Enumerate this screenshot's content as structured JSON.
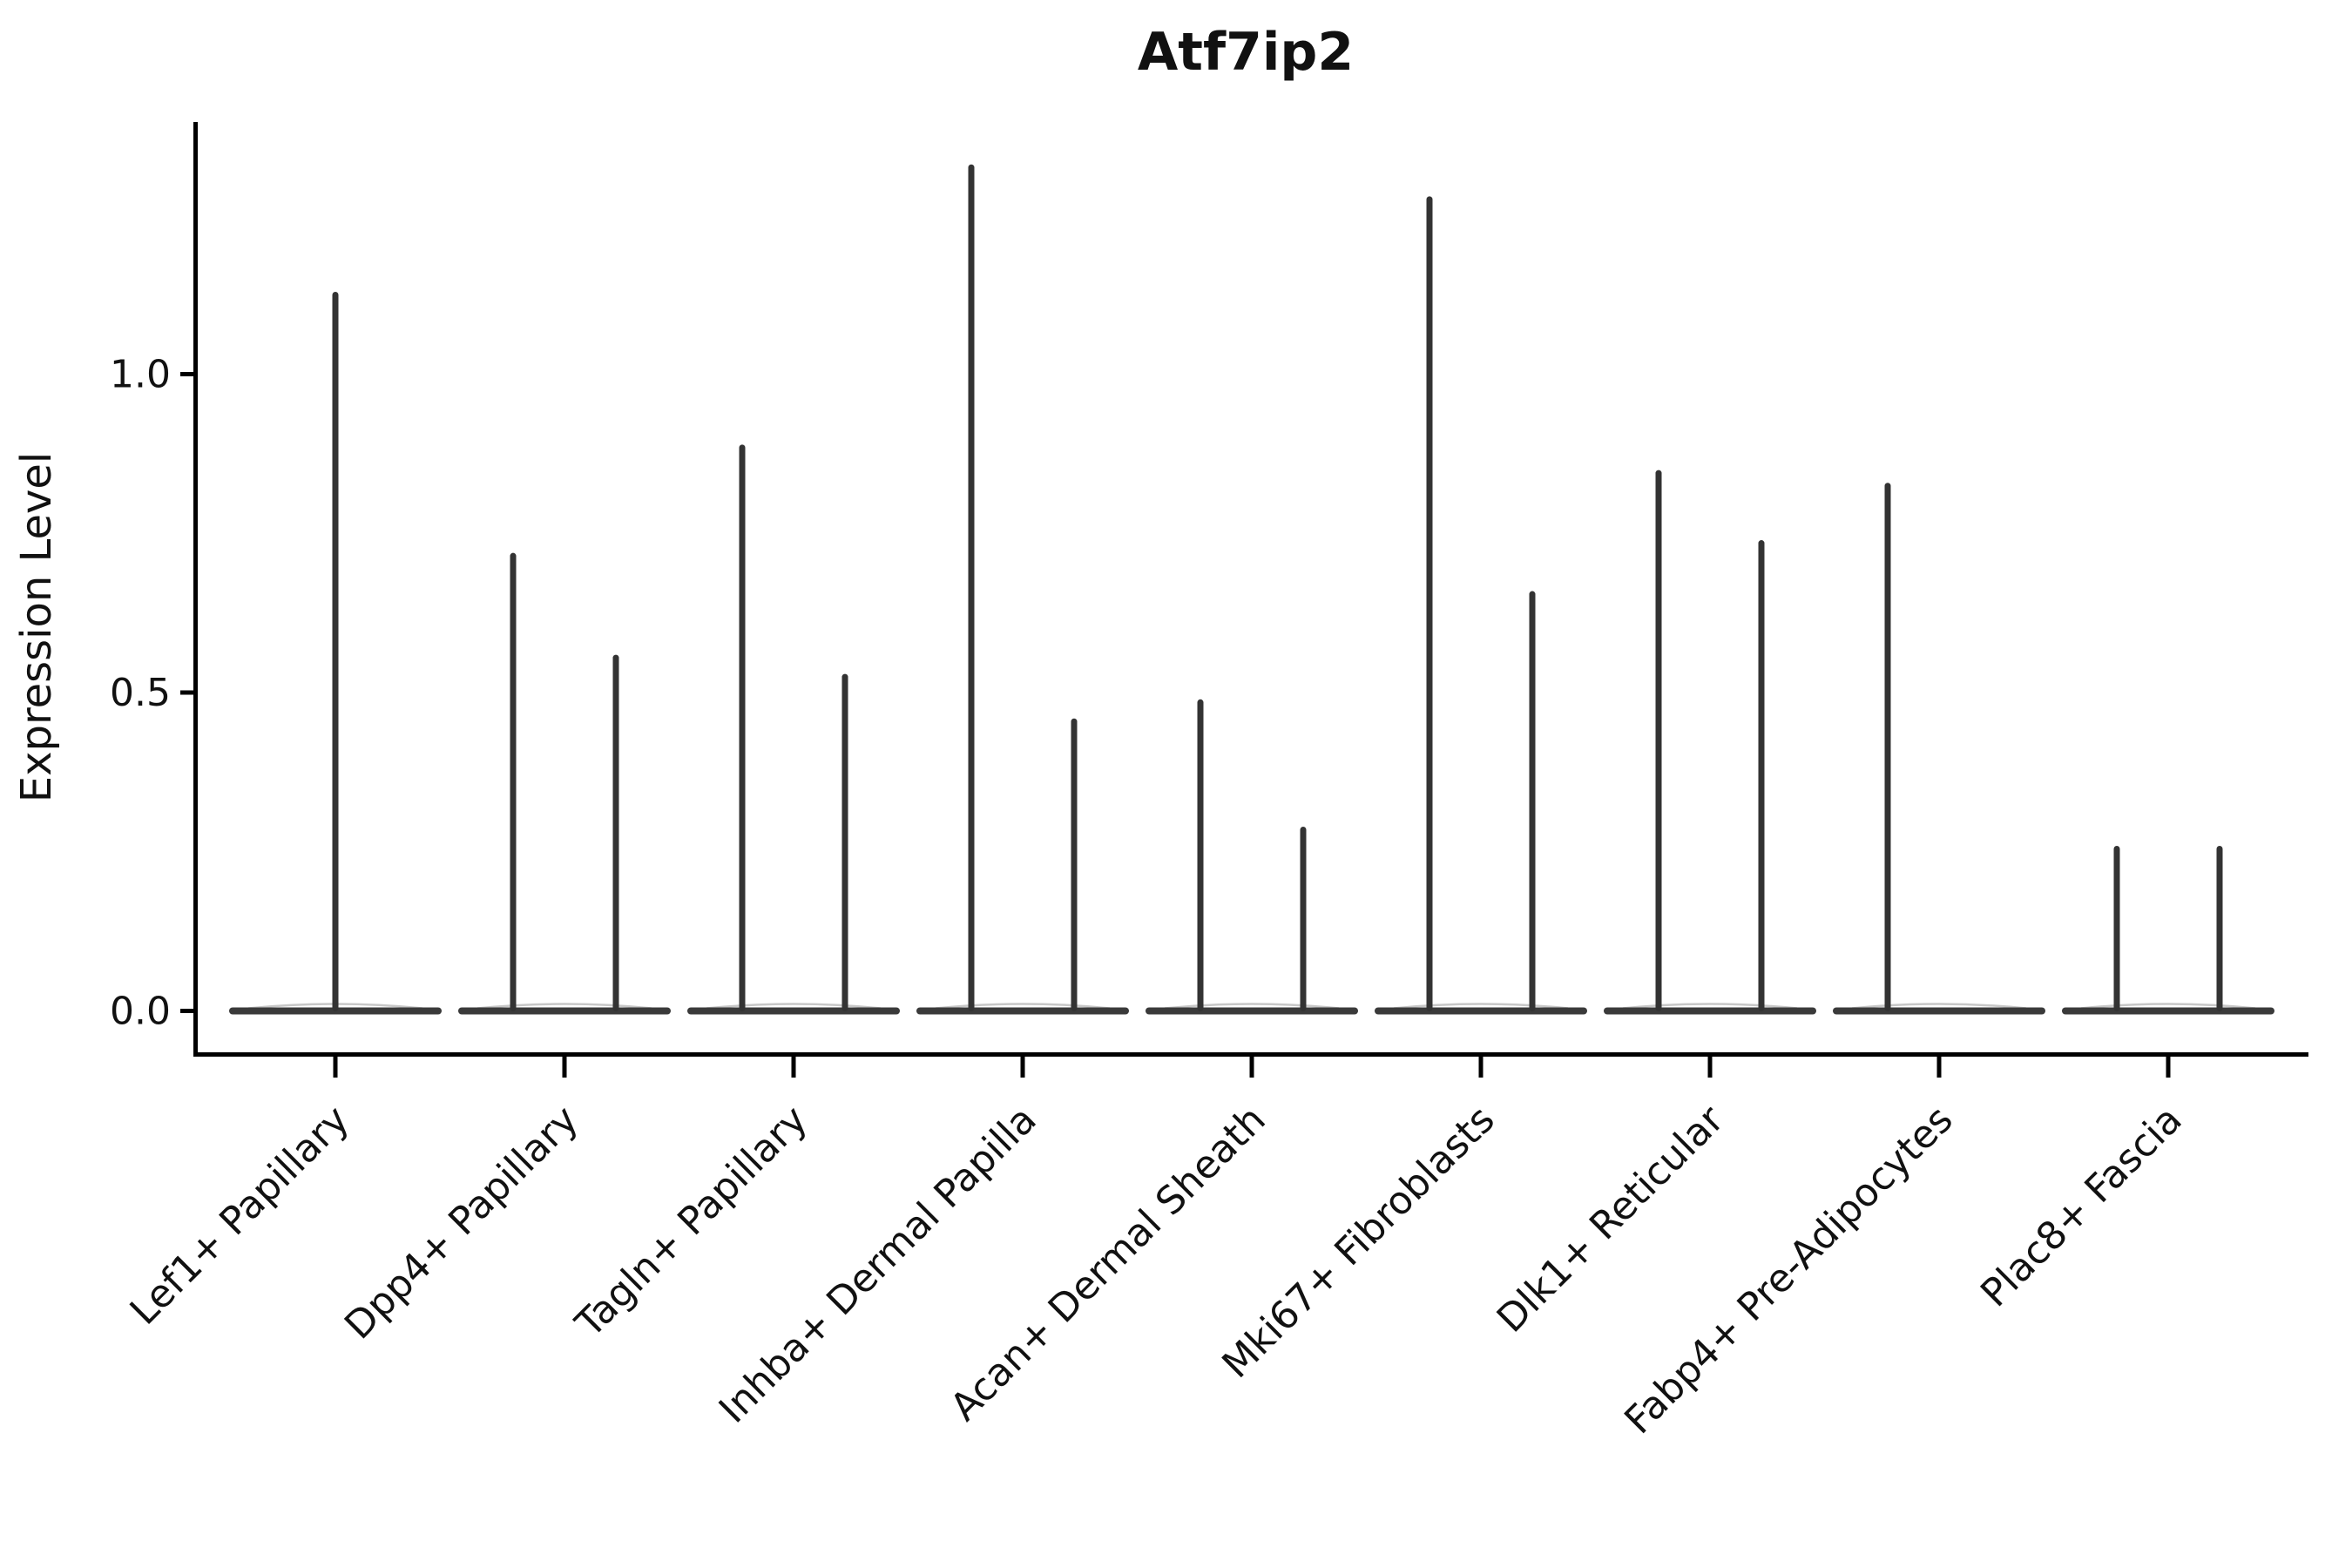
{
  "chart_data": {
    "type": "violin",
    "title": "Atf7ip2",
    "ylabel": "Expression Level",
    "xlabel": "",
    "ylim": [
      -0.07,
      1.4
    ],
    "yticks": [
      "0.0",
      "0.5",
      "1.0"
    ],
    "ytick_values": [
      0.0,
      0.5,
      1.0
    ],
    "grid": "off",
    "legend": "none",
    "style": "flat violins at zero expression with a thin spike up to the maximum expression value; two dodged violins per category unless noted",
    "categories": [
      "Lef1+ Papillary",
      "Dpp4+ Papillary",
      "Tagln+ Papillary",
      "Inhba+ Dermal Papilla",
      "Acan+ Dermal Sheath",
      "Mki67+ Fibroblasts",
      "Dlk1+ Reticular",
      "Fabp4+ Pre-Adipocytes",
      "Plac8+ Fascia"
    ],
    "groups": [
      {
        "category": "Lef1+ Papillary",
        "violins": [
          {
            "position": "center",
            "max": 1.13
          }
        ]
      },
      {
        "category": "Dpp4+ Papillary",
        "violins": [
          {
            "position": "left",
            "max": 0.72
          },
          {
            "position": "right",
            "max": 0.56
          }
        ]
      },
      {
        "category": "Tagln+ Papillary",
        "violins": [
          {
            "position": "left",
            "max": 0.89
          },
          {
            "position": "right",
            "max": 0.53
          }
        ]
      },
      {
        "category": "Inhba+ Dermal Papilla",
        "violins": [
          {
            "position": "left",
            "max": 1.33
          },
          {
            "position": "right",
            "max": 0.46
          }
        ]
      },
      {
        "category": "Acan+ Dermal Sheath",
        "violins": [
          {
            "position": "left",
            "max": 0.49
          },
          {
            "position": "right",
            "max": 0.29
          }
        ]
      },
      {
        "category": "Mki67+ Fibroblasts",
        "violins": [
          {
            "position": "left",
            "max": 1.28
          },
          {
            "position": "right",
            "max": 0.66
          }
        ]
      },
      {
        "category": "Dlk1+ Reticular",
        "violins": [
          {
            "position": "left",
            "max": 0.85
          },
          {
            "position": "right",
            "max": 0.74
          }
        ]
      },
      {
        "category": "Fabp4+ Pre-Adipocytes",
        "violins": [
          {
            "position": "left",
            "max": 0.83
          }
        ]
      },
      {
        "category": "Plac8+ Fascia",
        "violins": [
          {
            "position": "left",
            "max": 0.26
          },
          {
            "position": "right",
            "max": 0.26
          }
        ]
      }
    ],
    "colors": {
      "spike": "#333333",
      "baseline": "#3a3a3a",
      "baseline_bulge": "#999999",
      "axis": "#000000",
      "text": "#111111"
    }
  }
}
